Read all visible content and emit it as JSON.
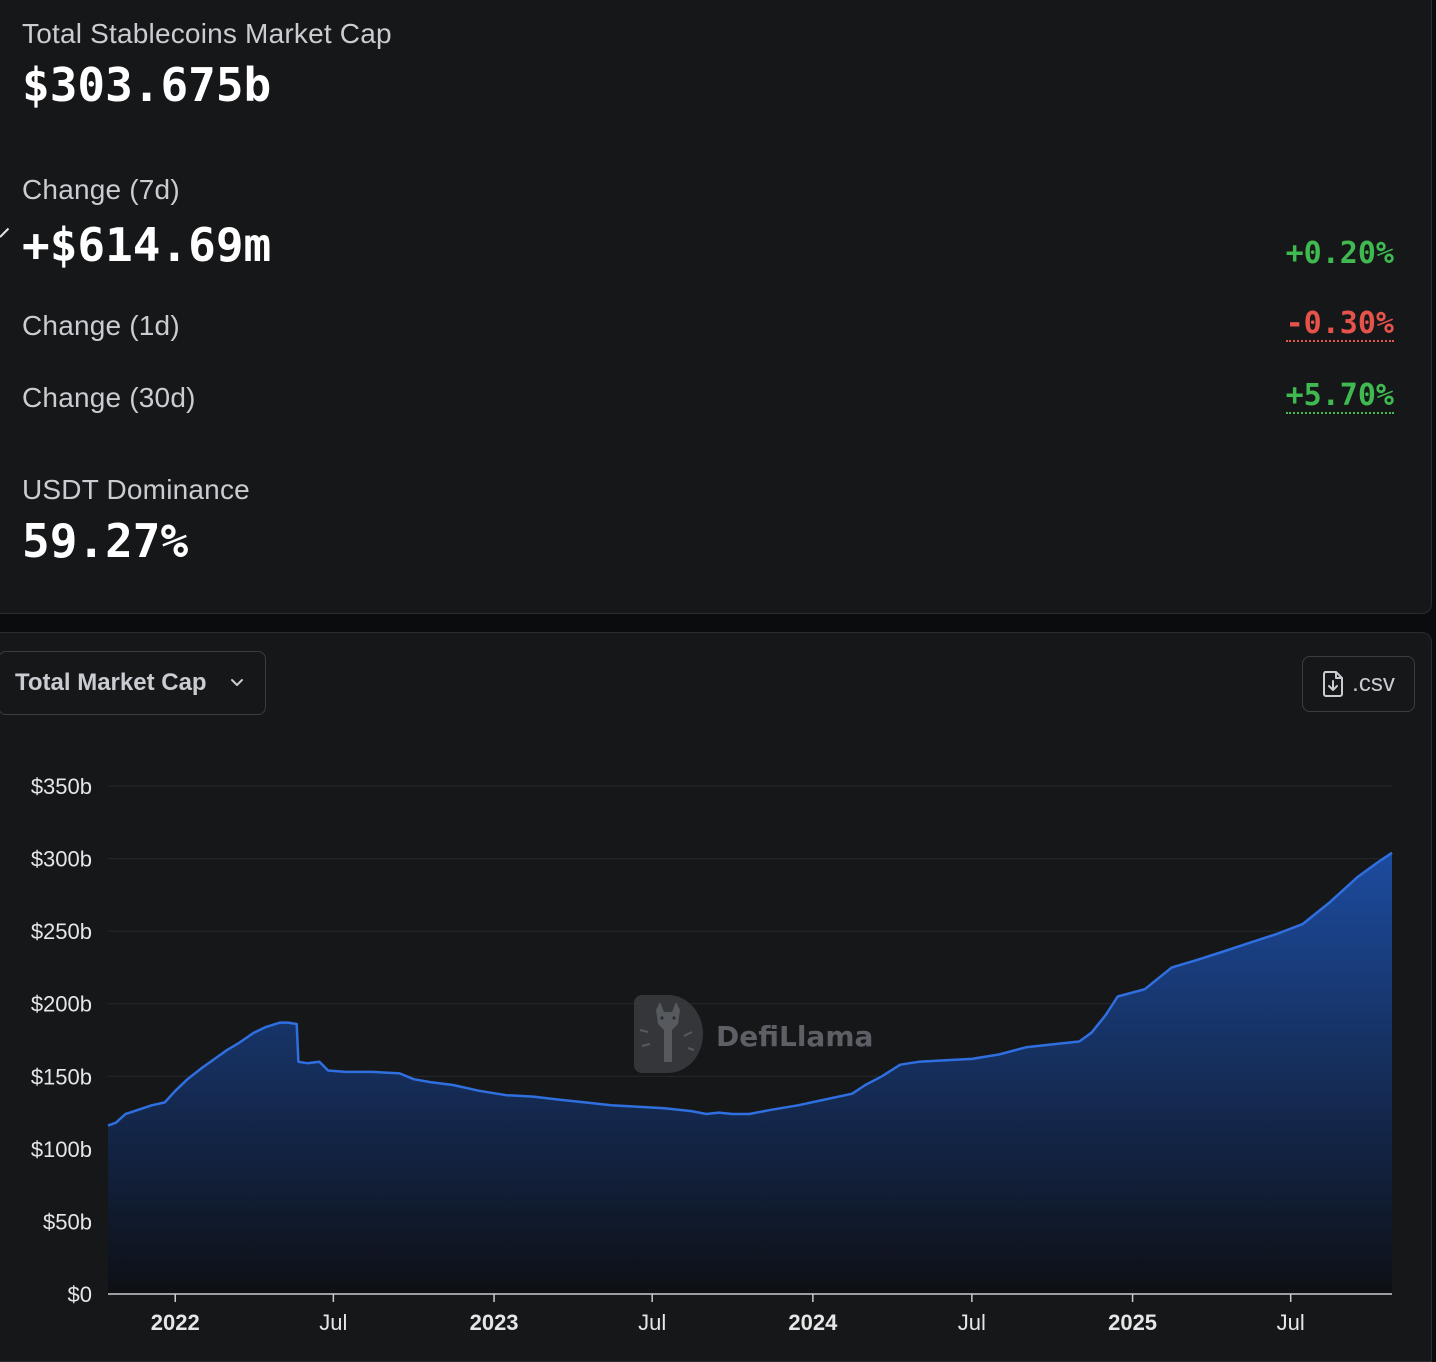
{
  "stats": {
    "total_label": "Total Stablecoins Market Cap",
    "total_value": "$303.675b",
    "change7d_label": "Change (7d)",
    "change7d_value": "+$614.69m",
    "change7d_pct": "+0.20%",
    "change1d_label": "Change (1d)",
    "change1d_pct": "-0.30%",
    "change30d_label": "Change (30d)",
    "change30d_pct": "+5.70%",
    "dominance_label": "USDT Dominance",
    "dominance_value": "59.27%"
  },
  "colors": {
    "positive": "#3fb950",
    "negative": "#e5534b",
    "line": "#2f6fe0",
    "area_top": "#1d4ea6",
    "area_bottom": "#0d0f14"
  },
  "controls": {
    "metric_select": "Total Market Cap",
    "csv_label": ".csv",
    "csv_icon": "file-download-icon",
    "select_icon": "chevron-down-icon"
  },
  "watermark": {
    "text": "DefiLlama",
    "icon": "llama-logo-icon"
  },
  "chart_data": {
    "type": "area",
    "ylim": [
      0,
      350
    ],
    "y_ticks": [
      "$0",
      "$50b",
      "$100b",
      "$150b",
      "$200b",
      "$250b",
      "$300b",
      "$350b"
    ],
    "x_ticks": [
      {
        "label": "2022",
        "date": "2022-01-01",
        "bold": true
      },
      {
        "label": "Jul",
        "date": "2022-07-01",
        "bold": false
      },
      {
        "label": "2023",
        "date": "2023-01-01",
        "bold": true
      },
      {
        "label": "Jul",
        "date": "2023-07-01",
        "bold": false
      },
      {
        "label": "2024",
        "date": "2024-01-01",
        "bold": true
      },
      {
        "label": "Jul",
        "date": "2024-07-01",
        "bold": false
      },
      {
        "label": "2025",
        "date": "2025-01-01",
        "bold": true
      },
      {
        "label": "Jul",
        "date": "2025-07-01",
        "bold": false
      }
    ],
    "x_range": [
      "2021-10-16",
      "2025-10-25"
    ],
    "series": [
      {
        "points": [
          [
            "2021-10-16",
            116
          ],
          [
            "2021-10-25",
            118
          ],
          [
            "2021-11-05",
            124
          ],
          [
            "2021-11-20",
            127
          ],
          [
            "2021-12-05",
            130
          ],
          [
            "2021-12-20",
            132
          ],
          [
            "2022-01-01",
            140
          ],
          [
            "2022-01-15",
            148
          ],
          [
            "2022-02-01",
            156
          ],
          [
            "2022-02-15",
            162
          ],
          [
            "2022-03-01",
            168
          ],
          [
            "2022-03-15",
            173
          ],
          [
            "2022-04-01",
            180
          ],
          [
            "2022-04-15",
            184
          ],
          [
            "2022-05-01",
            187
          ],
          [
            "2022-05-10",
            187
          ],
          [
            "2022-05-20",
            186
          ],
          [
            "2022-05-22",
            160
          ],
          [
            "2022-06-01",
            159
          ],
          [
            "2022-06-15",
            160
          ],
          [
            "2022-06-25",
            154
          ],
          [
            "2022-07-15",
            153
          ],
          [
            "2022-08-15",
            153
          ],
          [
            "2022-09-15",
            152
          ],
          [
            "2022-10-01",
            148
          ],
          [
            "2022-10-20",
            146
          ],
          [
            "2022-11-15",
            144
          ],
          [
            "2022-12-15",
            140
          ],
          [
            "2023-01-15",
            137
          ],
          [
            "2023-02-15",
            136
          ],
          [
            "2023-03-15",
            134
          ],
          [
            "2023-04-15",
            132
          ],
          [
            "2023-05-15",
            130
          ],
          [
            "2023-06-15",
            129
          ],
          [
            "2023-07-15",
            128
          ],
          [
            "2023-08-15",
            126
          ],
          [
            "2023-09-01",
            124
          ],
          [
            "2023-09-15",
            125
          ],
          [
            "2023-10-01",
            124
          ],
          [
            "2023-10-20",
            124
          ],
          [
            "2023-11-15",
            127
          ],
          [
            "2023-12-15",
            130
          ],
          [
            "2024-01-15",
            134
          ],
          [
            "2024-02-15",
            138
          ],
          [
            "2024-03-01",
            144
          ],
          [
            "2024-03-20",
            150
          ],
          [
            "2024-04-10",
            158
          ],
          [
            "2024-05-01",
            160
          ],
          [
            "2024-06-01",
            161
          ],
          [
            "2024-07-01",
            162
          ],
          [
            "2024-08-01",
            165
          ],
          [
            "2024-09-01",
            170
          ],
          [
            "2024-10-01",
            172
          ],
          [
            "2024-11-01",
            174
          ],
          [
            "2024-11-15",
            180
          ],
          [
            "2024-12-01",
            192
          ],
          [
            "2024-12-15",
            205
          ],
          [
            "2025-01-15",
            210
          ],
          [
            "2025-02-15",
            225
          ],
          [
            "2025-03-15",
            230
          ],
          [
            "2025-04-15",
            236
          ],
          [
            "2025-05-15",
            242
          ],
          [
            "2025-06-15",
            248
          ],
          [
            "2025-07-15",
            255
          ],
          [
            "2025-08-15",
            270
          ],
          [
            "2025-09-15",
            287
          ],
          [
            "2025-10-10",
            298
          ],
          [
            "2025-10-25",
            304
          ]
        ]
      }
    ]
  }
}
